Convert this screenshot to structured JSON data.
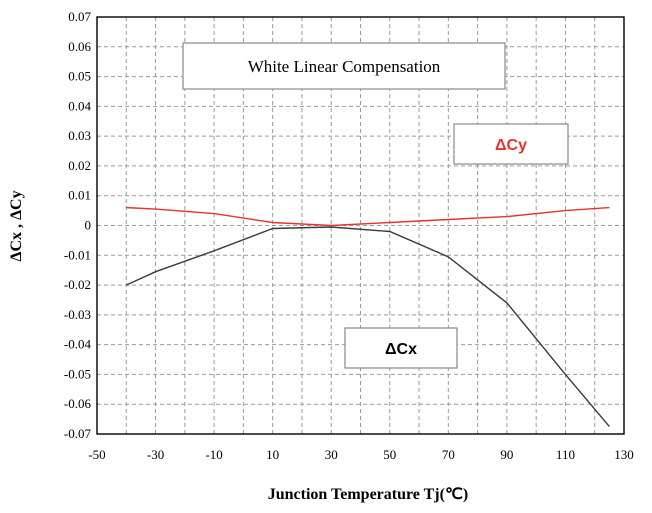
{
  "chart_data": {
    "type": "line",
    "title": "White Linear Compensation",
    "xlabel": "Junction Temperature  Tj(℃)",
    "ylabel": "ΔCx , ΔCy",
    "xlim": [
      -50,
      130
    ],
    "ylim": [
      -0.07,
      0.07
    ],
    "x_ticks": [
      "-50",
      "-30",
      "-10",
      "10",
      "30",
      "50",
      "70",
      "90",
      "110",
      "130"
    ],
    "y_ticks": [
      "0.07",
      "0.06",
      "0.05",
      "0.04",
      "0.03",
      "0.02",
      "0.01",
      "0",
      "-0.01",
      "-0.02",
      "-0.03",
      "-0.04",
      "-0.05",
      "-0.06",
      "-0.07"
    ],
    "grid": true,
    "series": [
      {
        "name": "ΔCy",
        "color": "#e8322d",
        "x": [
          -40,
          -30,
          -10,
          10,
          30,
          50,
          70,
          90,
          110,
          125
        ],
        "y": [
          0.006,
          0.0055,
          0.004,
          0.001,
          0.0,
          0.001,
          0.002,
          0.003,
          0.005,
          0.006
        ]
      },
      {
        "name": "ΔCx",
        "color": "#3a3a3a",
        "x": [
          -40,
          -30,
          -10,
          10,
          30,
          50,
          70,
          90,
          110,
          125
        ],
        "y": [
          -0.02,
          -0.0155,
          -0.0085,
          -0.001,
          -0.0005,
          -0.002,
          -0.0105,
          -0.026,
          -0.05,
          -0.0675
        ]
      }
    ]
  }
}
